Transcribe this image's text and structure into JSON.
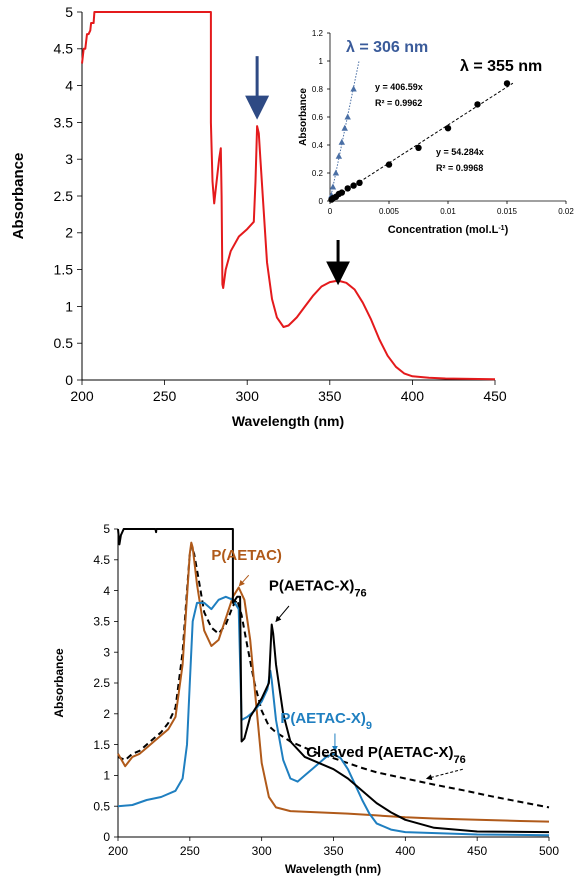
{
  "chart_data": [
    {
      "id": "top",
      "type": "line",
      "xlabel": "Wavelength (nm)",
      "ylabel": "Absorbance",
      "xlim": [
        200,
        450
      ],
      "ylim": [
        0,
        5
      ],
      "xticks": [
        200,
        250,
        300,
        350,
        400,
        450
      ],
      "yticks": [
        0,
        0.5,
        1,
        1.5,
        2,
        2.5,
        3,
        3.5,
        4,
        4.5,
        5
      ],
      "grid": false,
      "series": [
        {
          "color": "#e41a1c",
          "points": [
            [
              200,
              4.3
            ],
            [
              201,
              4.5
            ],
            [
              202,
              4.5
            ],
            [
              203,
              4.7
            ],
            [
              204,
              4.7
            ],
            [
              205,
              4.75
            ],
            [
              205.5,
              4.85
            ],
            [
              207,
              4.85
            ],
            [
              207.5,
              5
            ],
            [
              209,
              5
            ],
            [
              278,
              5
            ],
            [
              278,
              3.5
            ],
            [
              279,
              2.7
            ],
            [
              280,
              2.4
            ],
            [
              281,
              2.6
            ],
            [
              283,
              3.0
            ],
            [
              284,
              3.15
            ],
            [
              284.5,
              2.5
            ],
            [
              285,
              1.3
            ],
            [
              285.5,
              1.25
            ],
            [
              287,
              1.5
            ],
            [
              290,
              1.75
            ],
            [
              295,
              1.95
            ],
            [
              300,
              2.05
            ],
            [
              304,
              2.15
            ],
            [
              305,
              2.7
            ],
            [
              306,
              3.45
            ],
            [
              307,
              3.35
            ],
            [
              308,
              3.0
            ],
            [
              310,
              2.3
            ],
            [
              312,
              1.6
            ],
            [
              315,
              1.1
            ],
            [
              318,
              0.85
            ],
            [
              322,
              0.72
            ],
            [
              325,
              0.74
            ],
            [
              330,
              0.85
            ],
            [
              335,
              1.0
            ],
            [
              340,
              1.15
            ],
            [
              345,
              1.27
            ],
            [
              350,
              1.33
            ],
            [
              355,
              1.35
            ],
            [
              360,
              1.32
            ],
            [
              365,
              1.23
            ],
            [
              370,
              1.05
            ],
            [
              375,
              0.82
            ],
            [
              380,
              0.55
            ],
            [
              385,
              0.33
            ],
            [
              390,
              0.18
            ],
            [
              395,
              0.09
            ],
            [
              400,
              0.05
            ],
            [
              410,
              0.03
            ],
            [
              420,
              0.02
            ],
            [
              450,
              0.01
            ]
          ]
        }
      ],
      "annotations": [
        {
          "type": "arrow",
          "color": "#2e4a84",
          "x": 306,
          "y_from": 4.4,
          "y_to": 3.7
        },
        {
          "type": "arrow",
          "color": "#000000",
          "x": 355,
          "y_from": 2.1,
          "y_to": 1.45
        }
      ],
      "inset": {
        "type": "scatter",
        "xlabel": "Concentration (mol.L",
        "xlabel_sup": "-1",
        "xlabel_end": ")",
        "ylabel": "Absorbance",
        "xlim": [
          0,
          0.02
        ],
        "ylim": [
          0,
          1.2
        ],
        "xticks": [
          0,
          0.005,
          0.01,
          0.015,
          0.02
        ],
        "yticks": [
          0,
          0.2,
          0.4,
          0.6,
          0.8,
          1,
          1.2
        ],
        "series": [
          {
            "name": "λ = 306 nm",
            "color": "#4a6fa5",
            "label_color": "#3a5b9a",
            "marker": "triangle",
            "x": [
              0.000125,
              0.00025,
              0.0005,
              0.00075,
              0.001,
              0.00125,
              0.0015,
              0.002
            ],
            "y": [
              0.04,
              0.1,
              0.2,
              0.32,
              0.42,
              0.52,
              0.6,
              0.8
            ],
            "fit": {
              "slope": 406.59,
              "x_end": 0.00246,
              "equation": "y = 406.59x",
              "r2": "R² = 0.9962"
            }
          },
          {
            "name": "λ = 355 nm",
            "color": "#000000",
            "label_color": "#000000",
            "marker": "circle",
            "x": [
              0.000125,
              0.00025,
              0.0005,
              0.00075,
              0.001,
              0.0015,
              0.002,
              0.0025,
              0.005,
              0.0075,
              0.01,
              0.0125,
              0.015
            ],
            "y": [
              0.01,
              0.02,
              0.03,
              0.05,
              0.06,
              0.09,
              0.11,
              0.13,
              0.26,
              0.38,
              0.52,
              0.69,
              0.84
            ],
            "fit": {
              "slope": 54.284,
              "x_end": 0.0155,
              "equation": "y = 54.284x",
              "r2": "R² = 0.9968"
            }
          }
        ]
      }
    },
    {
      "id": "bottom",
      "type": "line",
      "xlabel": "Wavelength (nm)",
      "ylabel": "Absorbance",
      "xlim": [
        200,
        500
      ],
      "ylim": [
        0,
        5
      ],
      "xticks": [
        200,
        250,
        300,
        350,
        400,
        450,
        500
      ],
      "yticks": [
        0,
        0.5,
        1,
        1.5,
        2,
        2.5,
        3,
        3.5,
        4,
        4.5,
        5
      ],
      "grid": false,
      "series": [
        {
          "name": "P(AETAC)",
          "name_html": "P(AETAC)",
          "color": "#b05a1a",
          "dash": false,
          "points": [
            [
              200,
              1.35
            ],
            [
              205,
              1.15
            ],
            [
              210,
              1.3
            ],
            [
              215,
              1.35
            ],
            [
              220,
              1.45
            ],
            [
              225,
              1.55
            ],
            [
              230,
              1.65
            ],
            [
              235,
              1.75
            ],
            [
              240,
              1.95
            ],
            [
              245,
              2.8
            ],
            [
              248,
              3.9
            ],
            [
              250,
              4.6
            ],
            [
              251,
              4.78
            ],
            [
              252,
              4.7
            ],
            [
              255,
              4.1
            ],
            [
              260,
              3.35
            ],
            [
              265,
              3.1
            ],
            [
              270,
              3.2
            ],
            [
              275,
              3.55
            ],
            [
              280,
              3.9
            ],
            [
              284,
              4.05
            ],
            [
              288,
              3.85
            ],
            [
              292,
              3.2
            ],
            [
              296,
              2.2
            ],
            [
              300,
              1.2
            ],
            [
              305,
              0.65
            ],
            [
              310,
              0.48
            ],
            [
              320,
              0.42
            ],
            [
              340,
              0.4
            ],
            [
              360,
              0.38
            ],
            [
              380,
              0.35
            ],
            [
              400,
              0.32
            ],
            [
              420,
              0.3
            ],
            [
              450,
              0.28
            ],
            [
              480,
              0.26
            ],
            [
              500,
              0.25
            ]
          ]
        },
        {
          "name": "P(AETAC-X)76",
          "name_html": "P(AETAC-X)<tspan baseline-shift=\"sub\" font-size=\"11\">76</tspan>",
          "color": "#000000",
          "dash": false,
          "points": [
            [
              200,
              5
            ],
            [
              201,
              4.75
            ],
            [
              202,
              4.9
            ],
            [
              203,
              4.95
            ],
            [
              204,
              5
            ],
            [
              226,
              5
            ],
            [
              226.5,
              4.95
            ],
            [
              226.7,
              5
            ],
            [
              280,
              5
            ],
            [
              280,
              3.8
            ],
            [
              283,
              3.9
            ],
            [
              285,
              3.9
            ],
            [
              286,
              1.55
            ],
            [
              288,
              1.6
            ],
            [
              292,
              1.95
            ],
            [
              296,
              2.1
            ],
            [
              300,
              2.25
            ],
            [
              305,
              2.5
            ],
            [
              307,
              3.45
            ],
            [
              308,
              3.3
            ],
            [
              310,
              2.8
            ],
            [
              315,
              2.0
            ],
            [
              320,
              1.55
            ],
            [
              330,
              1.3
            ],
            [
              340,
              1.2
            ],
            [
              350,
              1.1
            ],
            [
              360,
              0.95
            ],
            [
              370,
              0.75
            ],
            [
              380,
              0.55
            ],
            [
              390,
              0.4
            ],
            [
              400,
              0.28
            ],
            [
              420,
              0.15
            ],
            [
              450,
              0.09
            ],
            [
              500,
              0.08
            ]
          ]
        },
        {
          "name": "P(AETAC-X)9",
          "name_html": "P(AETAC-X)<tspan baseline-shift=\"sub\" font-size=\"11\">9</tspan>",
          "color": "#1f7fc0",
          "dash": false,
          "points": [
            [
              200,
              0.5
            ],
            [
              210,
              0.52
            ],
            [
              220,
              0.6
            ],
            [
              230,
              0.65
            ],
            [
              240,
              0.75
            ],
            [
              245,
              0.95
            ],
            [
              248,
              1.5
            ],
            [
              250,
              2.5
            ],
            [
              252,
              3.5
            ],
            [
              255,
              3.8
            ],
            [
              260,
              3.8
            ],
            [
              265,
              3.7
            ],
            [
              270,
              3.85
            ],
            [
              275,
              3.9
            ],
            [
              280,
              3.85
            ],
            [
              284,
              3.7
            ],
            [
              286,
              1.9
            ],
            [
              290,
              1.95
            ],
            [
              295,
              2.05
            ],
            [
              300,
              2.2
            ],
            [
              304,
              2.4
            ],
            [
              306,
              2.7
            ],
            [
              307,
              2.55
            ],
            [
              310,
              1.9
            ],
            [
              315,
              1.25
            ],
            [
              320,
              0.95
            ],
            [
              325,
              0.9
            ],
            [
              330,
              1.0
            ],
            [
              335,
              1.1
            ],
            [
              340,
              1.2
            ],
            [
              345,
              1.3
            ],
            [
              350,
              1.35
            ],
            [
              355,
              1.28
            ],
            [
              360,
              1.1
            ],
            [
              365,
              0.85
            ],
            [
              370,
              0.6
            ],
            [
              375,
              0.38
            ],
            [
              380,
              0.22
            ],
            [
              390,
              0.12
            ],
            [
              400,
              0.08
            ],
            [
              450,
              0.04
            ],
            [
              500,
              0.03
            ]
          ]
        },
        {
          "name": "Cleaved P(AETAC-X)76",
          "name_html": "Cleaved P(AETAC-X)<tspan baseline-shift=\"sub\" font-size=\"11\">76</tspan>",
          "color": "#000000",
          "dash": true,
          "points": [
            [
              200,
              1.3
            ],
            [
              205,
              1.25
            ],
            [
              210,
              1.35
            ],
            [
              215,
              1.4
            ],
            [
              220,
              1.5
            ],
            [
              225,
              1.6
            ],
            [
              230,
              1.7
            ],
            [
              235,
              1.85
            ],
            [
              240,
              2.1
            ],
            [
              245,
              3.0
            ],
            [
              248,
              4.0
            ],
            [
              250,
              4.6
            ],
            [
              251,
              4.72
            ],
            [
              253,
              4.6
            ],
            [
              256,
              4.2
            ],
            [
              260,
              3.65
            ],
            [
              265,
              3.4
            ],
            [
              270,
              3.3
            ],
            [
              275,
              3.45
            ],
            [
              280,
              3.75
            ],
            [
              283,
              3.85
            ],
            [
              286,
              3.6
            ],
            [
              290,
              3.1
            ],
            [
              295,
              2.5
            ],
            [
              300,
              2.05
            ],
            [
              305,
              1.8
            ],
            [
              310,
              1.7
            ],
            [
              320,
              1.55
            ],
            [
              330,
              1.45
            ],
            [
              340,
              1.35
            ],
            [
              350,
              1.28
            ],
            [
              360,
              1.2
            ],
            [
              370,
              1.12
            ],
            [
              380,
              1.05
            ],
            [
              400,
              0.95
            ],
            [
              420,
              0.85
            ],
            [
              440,
              0.76
            ],
            [
              460,
              0.66
            ],
            [
              480,
              0.57
            ],
            [
              500,
              0.48
            ]
          ]
        }
      ],
      "labels": [
        {
          "series": 0,
          "x": 265,
          "y": 4.5,
          "arrow_from": [
            291,
            4.25
          ],
          "arrow_to": [
            284.5,
            4.08
          ]
        },
        {
          "series": 1,
          "x": 305,
          "y": 4.0,
          "arrow_from": [
            319,
            3.75
          ],
          "arrow_to": [
            310,
            3.5
          ]
        },
        {
          "series": 2,
          "x": 313,
          "y": 1.85,
          "arrow_from": [
            351,
            1.68
          ],
          "arrow_to": [
            351,
            1.4
          ]
        },
        {
          "series": 3,
          "x": 331,
          "y": 1.3,
          "arrow_from": [
            440,
            1.1
          ],
          "arrow_to": [
            415,
            0.95
          ]
        }
      ]
    }
  ]
}
